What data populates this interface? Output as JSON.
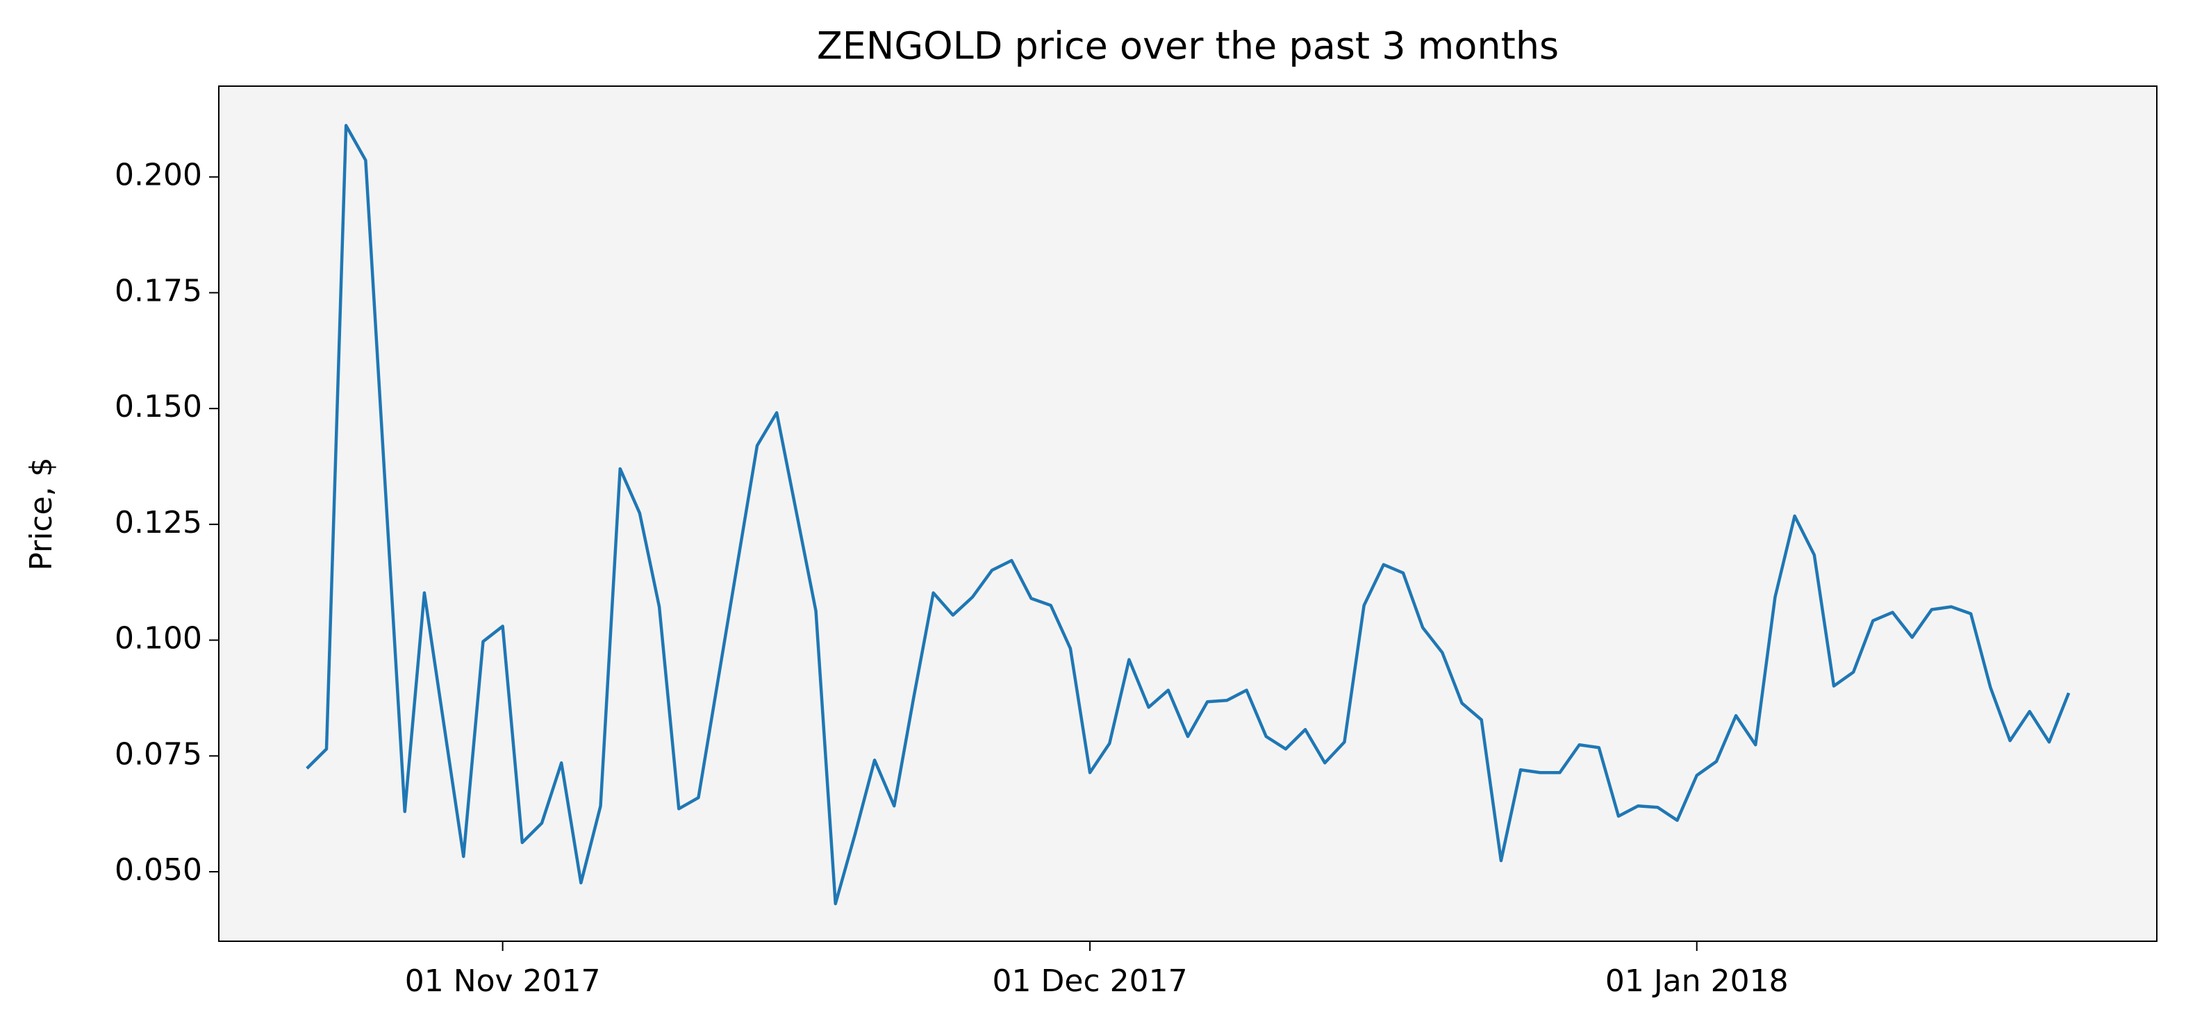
{
  "chart_data": {
    "type": "line",
    "title": "ZENGOLD price over the past 3 months",
    "ylabel": "Price, $",
    "x": [
      "2017-10-22",
      "2017-10-23",
      "2017-10-24",
      "2017-10-25",
      "2017-10-27",
      "2017-10-28",
      "2017-10-30",
      "2017-10-31",
      "2017-11-01",
      "2017-11-02",
      "2017-11-03",
      "2017-11-04",
      "2017-11-05",
      "2017-11-06",
      "2017-11-07",
      "2017-11-08",
      "2017-11-09",
      "2017-11-10",
      "2017-11-11",
      "2017-11-14",
      "2017-11-15",
      "2017-11-17",
      "2017-11-18",
      "2017-11-19",
      "2017-11-20",
      "2017-11-21",
      "2017-11-22",
      "2017-11-23",
      "2017-11-24",
      "2017-11-25",
      "2017-11-26",
      "2017-11-27",
      "2017-11-28",
      "2017-11-29",
      "2017-11-30",
      "2017-12-01",
      "2017-12-02",
      "2017-12-03",
      "2017-12-04",
      "2017-12-05",
      "2017-12-06",
      "2017-12-07",
      "2017-12-08",
      "2017-12-09",
      "2017-12-10",
      "2017-12-11",
      "2017-12-12",
      "2017-12-13",
      "2017-12-14",
      "2017-12-15",
      "2017-12-16",
      "2017-12-17",
      "2017-12-18",
      "2017-12-19",
      "2017-12-20",
      "2017-12-21",
      "2017-12-22",
      "2017-12-23",
      "2017-12-24",
      "2017-12-25",
      "2017-12-26",
      "2017-12-27",
      "2017-12-28",
      "2017-12-29",
      "2017-12-30",
      "2017-12-31",
      "2018-01-01",
      "2018-01-02",
      "2018-01-03",
      "2018-01-04",
      "2018-01-05",
      "2018-01-06",
      "2018-01-07",
      "2018-01-08",
      "2018-01-09",
      "2018-01-10",
      "2018-01-11",
      "2018-01-12",
      "2018-01-13",
      "2018-01-14",
      "2018-01-15",
      "2018-01-16",
      "2018-01-17",
      "2018-01-18",
      "2018-01-19",
      "2018-01-20"
    ],
    "values": [
      0.0723,
      0.0765,
      0.2111,
      0.2036,
      0.063,
      0.1102,
      0.0533,
      0.0997,
      0.103,
      0.0563,
      0.0605,
      0.0735,
      0.0476,
      0.0642,
      0.137,
      0.1274,
      0.1072,
      0.0636,
      0.066,
      0.142,
      0.1491,
      0.1063,
      0.0431,
      0.0581,
      0.0741,
      0.0642,
      0.0877,
      0.1102,
      0.1054,
      0.1093,
      0.1151,
      0.1172,
      0.109,
      0.1075,
      0.0982,
      0.0714,
      0.0777,
      0.0958,
      0.0855,
      0.0892,
      0.0792,
      0.0867,
      0.087,
      0.0892,
      0.0792,
      0.0765,
      0.0807,
      0.0735,
      0.078,
      0.1075,
      0.1163,
      0.1145,
      0.1027,
      0.0973,
      0.0864,
      0.0828,
      0.0524,
      0.072,
      0.0714,
      0.0714,
      0.0774,
      0.0768,
      0.062,
      0.0642,
      0.0639,
      0.0611,
      0.0708,
      0.0738,
      0.0837,
      0.0774,
      0.1093,
      0.1268,
      0.1184,
      0.0901,
      0.0931,
      0.1042,
      0.106,
      0.1006,
      0.1066,
      0.1072,
      0.1057,
      0.0898,
      0.0783,
      0.0846,
      0.078,
      0.0886
    ],
    "color": "#1f77b4",
    "background": "#f4f4f4",
    "xlim": [
      "2017-10-17T12:00:00Z",
      "2018-01-24T12:00:00Z"
    ],
    "xticks": [
      {
        "value": "2017-11-01",
        "label": "01 Nov 2017"
      },
      {
        "value": "2017-12-01",
        "label": "01 Dec 2017"
      },
      {
        "value": "2018-01-01",
        "label": "01 Jan 2018"
      }
    ],
    "ylim": [
      0.035,
      0.2196
    ],
    "yticks": [
      {
        "value": 0.05,
        "label": "0.050"
      },
      0.075,
      {
        "value": 0.1,
        "label": "0.100"
      },
      0.125,
      {
        "value": 0.15,
        "label": "0.150"
      },
      0.175,
      {
        "value": 0.2,
        "label": "0.200"
      }
    ]
  }
}
